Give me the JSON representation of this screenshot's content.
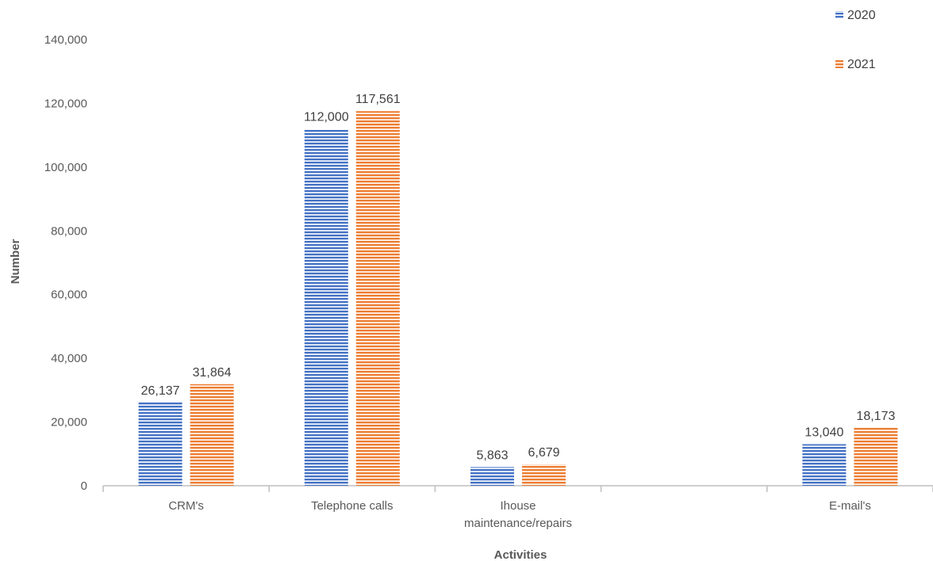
{
  "chart_data": {
    "type": "bar",
    "title": "",
    "xlabel": "Activities",
    "ylabel": "Number",
    "ylim": [
      0,
      140000
    ],
    "yticks": [
      0,
      20000,
      40000,
      60000,
      80000,
      100000,
      120000,
      140000
    ],
    "ytick_labels": [
      "0",
      "20,000",
      "40,000",
      "60,000",
      "80,000",
      "100,000",
      "120,000",
      "140,000"
    ],
    "grid": false,
    "legend_position": "top-right",
    "categories": [
      [
        "CRM's"
      ],
      [
        "Telephone calls"
      ],
      [
        "Ihouse",
        "maintenance/repairs"
      ],
      [
        ""
      ],
      [
        "E-mail's"
      ]
    ],
    "series": [
      {
        "name": "2020",
        "color": "#4472C4",
        "values": [
          26137,
          112000,
          5863,
          null,
          13040
        ],
        "labels": [
          "26,137",
          "112,000",
          "5,863",
          "",
          "13,040"
        ]
      },
      {
        "name": "2021",
        "color": "#ED7D31",
        "values": [
          31864,
          117561,
          6679,
          null,
          18173
        ],
        "labels": [
          "31,864",
          "117,561",
          "6,679",
          "",
          "18,173"
        ]
      }
    ]
  }
}
